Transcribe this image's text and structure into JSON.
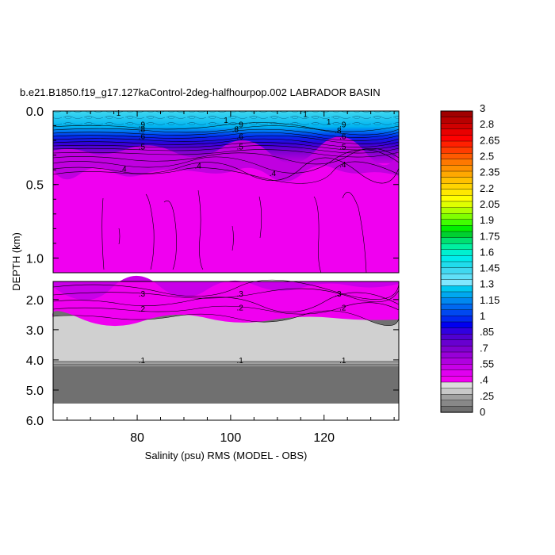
{
  "chart_data": {
    "type": "contour",
    "title": "b.e21.B1850.f19_g17.127kaControl-2deg-halfhourpop.002 LABRADOR BASIN",
    "xlabel": "Salinity (psu) RMS (MODEL - OBS)",
    "ylabel": "DEPTH (km)",
    "x_ticks": [
      "80",
      "100",
      "120"
    ],
    "x_tick_values": [
      80,
      100,
      120
    ],
    "xlim": [
      62,
      136
    ],
    "upper_panel": {
      "ylim": [
        0.0,
        1.1
      ],
      "y_ticks": [
        "0.0",
        "0.5",
        "1.0"
      ],
      "y_tick_values": [
        0.0,
        0.5,
        1.0
      ]
    },
    "lower_panel": {
      "ylim": [
        1.4,
        6.0
      ],
      "y_ticks": [
        "2.0",
        "3.0",
        "4.0",
        "5.0",
        "6.0"
      ],
      "y_tick_values": [
        2.0,
        3.0,
        4.0,
        5.0,
        6.0
      ]
    },
    "contour_labels": [
      {
        "text": "1",
        "panel": "upper",
        "x": 76,
        "depth": 0.01
      },
      {
        "text": "1",
        "panel": "upper",
        "x": 99,
        "depth": 0.06
      },
      {
        "text": "1",
        "panel": "upper",
        "x": 116,
        "depth": 0.02
      },
      {
        "text": "1",
        "panel": "upper",
        "x": 121,
        "depth": 0.07
      },
      {
        "text": ".9",
        "panel": "upper",
        "x": 81,
        "depth": 0.09
      },
      {
        "text": ".9",
        "panel": "upper",
        "x": 102,
        "depth": 0.09
      },
      {
        "text": ".9",
        "panel": "upper",
        "x": 124,
        "depth": 0.09
      },
      {
        "text": ".8",
        "panel": "upper",
        "x": 81,
        "depth": 0.12
      },
      {
        "text": ".8",
        "panel": "upper",
        "x": 101,
        "depth": 0.12
      },
      {
        "text": ".8",
        "panel": "upper",
        "x": 123,
        "depth": 0.13
      },
      {
        "text": ".6",
        "panel": "upper",
        "x": 81,
        "depth": 0.17
      },
      {
        "text": ".6",
        "panel": "upper",
        "x": 102,
        "depth": 0.17
      },
      {
        "text": ".6",
        "panel": "upper",
        "x": 124,
        "depth": 0.17
      },
      {
        "text": ".5",
        "panel": "upper",
        "x": 81,
        "depth": 0.24
      },
      {
        "text": ".5",
        "panel": "upper",
        "x": 102,
        "depth": 0.24
      },
      {
        "text": ".5",
        "panel": "upper",
        "x": 124,
        "depth": 0.24
      },
      {
        "text": ".4",
        "panel": "upper",
        "x": 77,
        "depth": 0.39
      },
      {
        "text": ".4",
        "panel": "upper",
        "x": 93,
        "depth": 0.37
      },
      {
        "text": ".4",
        "panel": "upper",
        "x": 109,
        "depth": 0.42
      },
      {
        "text": ".4",
        "panel": "upper",
        "x": 124,
        "depth": 0.36
      },
      {
        "text": ".3",
        "panel": "lower",
        "x": 81,
        "depth": 1.8
      },
      {
        "text": ".3",
        "panel": "lower",
        "x": 102,
        "depth": 1.8
      },
      {
        "text": ".3",
        "panel": "lower",
        "x": 123,
        "depth": 1.8
      },
      {
        "text": ".2",
        "panel": "lower",
        "x": 81,
        "depth": 2.3
      },
      {
        "text": ".2",
        "panel": "lower",
        "x": 102,
        "depth": 2.25
      },
      {
        "text": ".2",
        "panel": "lower",
        "x": 124,
        "depth": 2.25
      },
      {
        "text": ".1",
        "panel": "lower",
        "x": 81,
        "depth": 4.0
      },
      {
        "text": ".1",
        "panel": "lower",
        "x": 102,
        "depth": 4.0
      },
      {
        "text": ".1",
        "panel": "lower",
        "x": 124,
        "depth": 4.0
      }
    ],
    "colorbar": {
      "labels": [
        "3",
        "2.8",
        "2.65",
        "2.5",
        "2.35",
        "2.2",
        "2.05",
        "1.9",
        "1.75",
        "1.6",
        "1.45",
        "1.3",
        "1.15",
        "1",
        ".85",
        ".7",
        ".55",
        ".4",
        ".25",
        "0"
      ],
      "colors_top_to_bottom": [
        "#a00000",
        "#b80000",
        "#d00000",
        "#e80000",
        "#ff0000",
        "#ff2000",
        "#ff3c00",
        "#ff5a00",
        "#ff7800",
        "#ff9000",
        "#ffa800",
        "#ffc000",
        "#ffd400",
        "#ffe800",
        "#ffff00",
        "#e0ff00",
        "#b0ff00",
        "#80ff00",
        "#40ff00",
        "#00f000",
        "#00d030",
        "#00e070",
        "#00f0a0",
        "#00f0d0",
        "#00ecec",
        "#20dcec",
        "#40d8f0",
        "#60e0f8",
        "#80e8ff",
        "#00c8f0",
        "#00a8f0",
        "#0088f0",
        "#0068f0",
        "#0048f0",
        "#0028f0",
        "#0000f0",
        "#3000e0",
        "#5000d0",
        "#6800d0",
        "#8000d0",
        "#9800d8",
        "#b000e0",
        "#c800e8",
        "#e000f0",
        "#f000f0",
        "#dcdcdc",
        "#c8c8c8",
        "#a0a0a0",
        "#888888",
        "#707070"
      ]
    }
  }
}
